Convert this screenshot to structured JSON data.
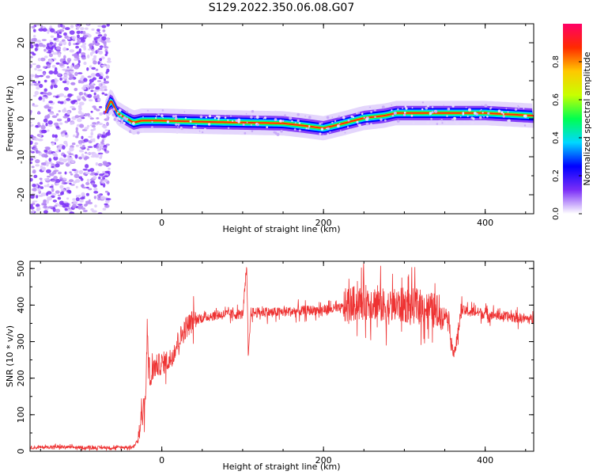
{
  "title": "S129.2022.350.06.08.G07",
  "chart_data": [
    {
      "type": "heatmap",
      "xlabel": "Height of straight line (km)",
      "ylabel": "Frequency (Hz)",
      "xlim": [
        -163,
        460
      ],
      "ylim": [
        -25,
        25
      ],
      "xticks": [
        0,
        200,
        400
      ],
      "yticks": [
        -20,
        -10,
        0,
        10,
        20
      ],
      "colorbar": {
        "label": "Normalized spectral amplitude",
        "range": [
          0,
          1
        ],
        "ticks": [
          0.0,
          0.2,
          0.4,
          0.6,
          0.8
        ],
        "colormap": [
          "#ffffff",
          "#7b2ff7",
          "#0000ff",
          "#00d8ff",
          "#00ff50",
          "#c8ff00",
          "#ffc800",
          "#ff2a00",
          "#ff0066"
        ]
      },
      "noise_region_km": [
        -163,
        -65
      ],
      "ridge": {
        "x": [
          -70,
          -63,
          -55,
          -45,
          -35,
          -25,
          0,
          50,
          100,
          150,
          175,
          200,
          225,
          250,
          275,
          290,
          300,
          350,
          400,
          460
        ],
        "y": [
          1.5,
          5.0,
          1.5,
          0.2,
          -1.0,
          -0.5,
          -0.5,
          -0.8,
          -1.0,
          -1.2,
          -1.8,
          -2.5,
          -1.2,
          0.2,
          0.8,
          1.5,
          1.5,
          1.5,
          1.5,
          0.8
        ]
      }
    },
    {
      "type": "line",
      "xlabel": "Height of straight line (km)",
      "ylabel": "SNR (10 * v/v)",
      "xlim": [
        -163,
        460
      ],
      "ylim": [
        0,
        520
      ],
      "xticks": [
        0,
        200,
        400
      ],
      "yticks": [
        0,
        100,
        200,
        300,
        400,
        500
      ],
      "color": "#ee3333",
      "series": [
        {
          "x": [
            -163,
            -130,
            -100,
            -60,
            -35,
            -30,
            -27,
            -25,
            -20,
            -18,
            -15,
            -10,
            0,
            10,
            20,
            30,
            40,
            60,
            80,
            100,
            105,
            107,
            110,
            140,
            180,
            220,
            230,
            240,
            260,
            270,
            280,
            300,
            320,
            345,
            355,
            358,
            362,
            365,
            370,
            390,
            420,
            460
          ],
          "y": [
            10,
            12,
            10,
            10,
            12,
            30,
            60,
            100,
            130,
            350,
            180,
            230,
            240,
            250,
            300,
            340,
            360,
            370,
            375,
            375,
            500,
            250,
            380,
            380,
            385,
            390,
            400,
            405,
            410,
            400,
            395,
            400,
            395,
            380,
            370,
            290,
            275,
            300,
            385,
            380,
            370,
            360
          ]
        }
      ]
    }
  ]
}
